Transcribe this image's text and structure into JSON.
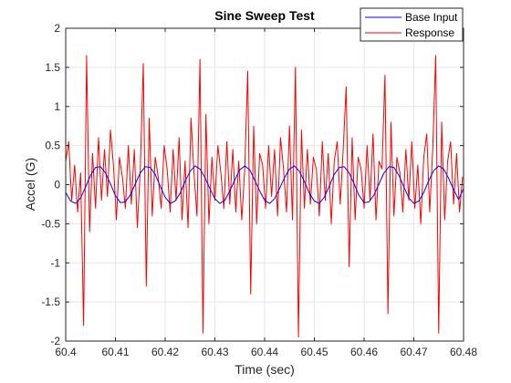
{
  "chart_data": {
    "type": "line",
    "title": "Sine Sweep Test",
    "xlabel": "Time (sec)",
    "ylabel": "Accel (G)",
    "xlim": [
      60.4,
      60.48
    ],
    "ylim": [
      -2,
      2
    ],
    "xticks": [
      60.4,
      60.41,
      60.42,
      60.43,
      60.44,
      60.45,
      60.46,
      60.47,
      60.48
    ],
    "xtick_labels": [
      "60.4",
      "60.41",
      "60.42",
      "60.43",
      "60.44",
      "60.45",
      "60.46",
      "60.47",
      "60.48"
    ],
    "yticks": [
      -2,
      -1.5,
      -1,
      -0.5,
      0,
      0.5,
      1,
      1.5,
      2
    ],
    "ytick_labels": [
      "-2",
      "-1.5",
      "-1",
      "-0.5",
      "0",
      "0.5",
      "1",
      "1.5",
      "2"
    ],
    "grid": true,
    "legend_position": "top-right",
    "series": [
      {
        "name": "Base Input",
        "color": "#0000ff",
        "x": [
          60.4,
          60.401,
          60.402,
          60.403,
          60.404,
          60.405,
          60.406,
          60.407,
          60.408,
          60.409,
          60.41,
          60.411,
          60.412,
          60.413,
          60.414,
          60.415,
          60.416,
          60.417,
          60.418,
          60.419,
          60.42,
          60.421,
          60.422,
          60.423,
          60.424,
          60.425,
          60.426,
          60.427,
          60.428,
          60.429,
          60.43,
          60.431,
          60.432,
          60.433,
          60.434,
          60.435,
          60.436,
          60.437,
          60.438,
          60.439,
          60.44,
          60.441,
          60.442,
          60.443,
          60.444,
          60.445,
          60.446,
          60.447,
          60.448,
          60.449,
          60.45,
          60.451,
          60.452,
          60.453,
          60.454,
          60.455,
          60.456,
          60.457,
          60.458,
          60.459,
          60.46,
          60.461,
          60.462,
          60.463,
          60.464,
          60.465,
          60.466,
          60.467,
          60.468,
          60.469,
          60.47,
          60.471,
          60.472,
          60.473,
          60.474,
          60.475,
          60.476,
          60.477,
          60.478,
          60.479,
          60.48
        ],
        "y": [
          -0.1,
          -0.21,
          -0.24,
          -0.17,
          -0.03,
          0.12,
          0.22,
          0.23,
          0.15,
          0.01,
          -0.14,
          -0.23,
          -0.22,
          -0.13,
          0.01,
          0.15,
          0.23,
          0.22,
          0.13,
          -0.02,
          -0.16,
          -0.24,
          -0.21,
          -0.11,
          0.04,
          0.17,
          0.24,
          0.2,
          0.09,
          -0.05,
          -0.18,
          -0.24,
          -0.2,
          -0.08,
          0.06,
          0.19,
          0.24,
          0.19,
          0.06,
          -0.08,
          -0.2,
          -0.24,
          -0.18,
          -0.05,
          0.09,
          0.2,
          0.24,
          0.17,
          0.04,
          -0.11,
          -0.21,
          -0.24,
          -0.16,
          -0.02,
          0.13,
          0.22,
          0.23,
          0.15,
          0.01,
          -0.14,
          -0.23,
          -0.22,
          -0.13,
          0.01,
          0.15,
          0.23,
          0.22,
          0.12,
          -0.03,
          -0.17,
          -0.24,
          -0.21,
          -0.1,
          0.05,
          0.18,
          0.24,
          0.2,
          0.08,
          -0.06,
          -0.19,
          -0.05
        ]
      },
      {
        "name": "Response",
        "color": "#ff0000",
        "x": [
          60.4,
          60.4006,
          60.4012,
          60.4018,
          60.4024,
          60.403,
          60.4036,
          60.4042,
          60.4048,
          60.4054,
          60.406,
          60.4066,
          60.4072,
          60.4078,
          60.4084,
          60.409,
          60.4096,
          60.4102,
          60.4108,
          60.4114,
          60.412,
          60.4126,
          60.4132,
          60.4138,
          60.4144,
          60.415,
          60.4156,
          60.4162,
          60.4168,
          60.4174,
          60.418,
          60.4186,
          60.4192,
          60.4198,
          60.4204,
          60.421,
          60.4216,
          60.4222,
          60.4228,
          60.4234,
          60.424,
          60.4246,
          60.4252,
          60.4258,
          60.4264,
          60.427,
          60.4276,
          60.4282,
          60.4288,
          60.4294,
          60.43,
          60.4306,
          60.4312,
          60.4318,
          60.4324,
          60.433,
          60.4336,
          60.4342,
          60.4348,
          60.4354,
          60.436,
          60.4366,
          60.4372,
          60.4378,
          60.4384,
          60.439,
          60.4396,
          60.4402,
          60.4408,
          60.4414,
          60.442,
          60.4426,
          60.4432,
          60.4438,
          60.4444,
          60.445,
          60.4456,
          60.4462,
          60.4468,
          60.4474,
          60.448,
          60.4486,
          60.4492,
          60.4498,
          60.4504,
          60.451,
          60.4516,
          60.4522,
          60.4528,
          60.4534,
          60.454,
          60.4546,
          60.4552,
          60.4558,
          60.4564,
          60.457,
          60.4576,
          60.4582,
          60.4588,
          60.4594,
          60.46,
          60.4606,
          60.4612,
          60.4618,
          60.4624,
          60.463,
          60.4636,
          60.4642,
          60.4648,
          60.4654,
          60.466,
          60.4666,
          60.4672,
          60.4678,
          60.4684,
          60.469,
          60.4696,
          60.4702,
          60.4708,
          60.4714,
          60.472,
          60.4726,
          60.4732,
          60.4738,
          60.4744,
          60.475,
          60.4756,
          60.4762,
          60.4768,
          60.4774,
          60.478,
          60.4786,
          60.4792,
          60.4798
        ],
        "y": [
          0.3,
          0.55,
          -0.2,
          0.25,
          -0.35,
          0.15,
          -1.8,
          1.65,
          -0.6,
          0.4,
          -0.3,
          0.6,
          -0.2,
          0.45,
          -0.15,
          0.7,
          0.25,
          -0.45,
          0.35,
          0.1,
          -0.3,
          0.5,
          -0.25,
          0.45,
          -0.55,
          0.2,
          1.55,
          -1.3,
          0.85,
          -0.4,
          0.35,
          0.1,
          -0.3,
          0.5,
          0.2,
          -0.35,
          0.45,
          -0.2,
          0.6,
          -0.45,
          0.3,
          -0.55,
          0.85,
          0.15,
          -0.4,
          1.6,
          -1.9,
          0.9,
          -0.5,
          0.35,
          -0.2,
          0.5,
          0.15,
          -0.3,
          0.55,
          -0.25,
          0.45,
          -0.35,
          0.3,
          -0.45,
          0.2,
          1.45,
          -1.4,
          0.75,
          -0.5,
          0.4,
          0.25,
          -0.3,
          0.5,
          -0.15,
          0.45,
          -0.4,
          0.6,
          0.2,
          -0.35,
          0.75,
          -0.45,
          1.5,
          -1.95,
          0.7,
          -0.3,
          0.45,
          -0.25,
          0.35,
          0.2,
          -0.4,
          0.55,
          -0.2,
          0.4,
          -0.5,
          0.3,
          0.55,
          -0.25,
          0.45,
          1.25,
          -1.05,
          0.6,
          -0.45,
          0.35,
          0.2,
          -0.3,
          0.5,
          -0.2,
          0.65,
          -0.45,
          0.3,
          0.2,
          1.4,
          -1.65,
          0.8,
          -0.4,
          0.35,
          0.15,
          -0.35,
          0.45,
          -0.2,
          0.55,
          -0.3,
          0.25,
          -0.5,
          0.35,
          0.65,
          -0.35,
          0.45,
          1.65,
          -1.9,
          0.8,
          -0.45,
          0.3,
          0.55,
          -0.25,
          0.4,
          -0.35,
          0.1
        ]
      }
    ]
  }
}
